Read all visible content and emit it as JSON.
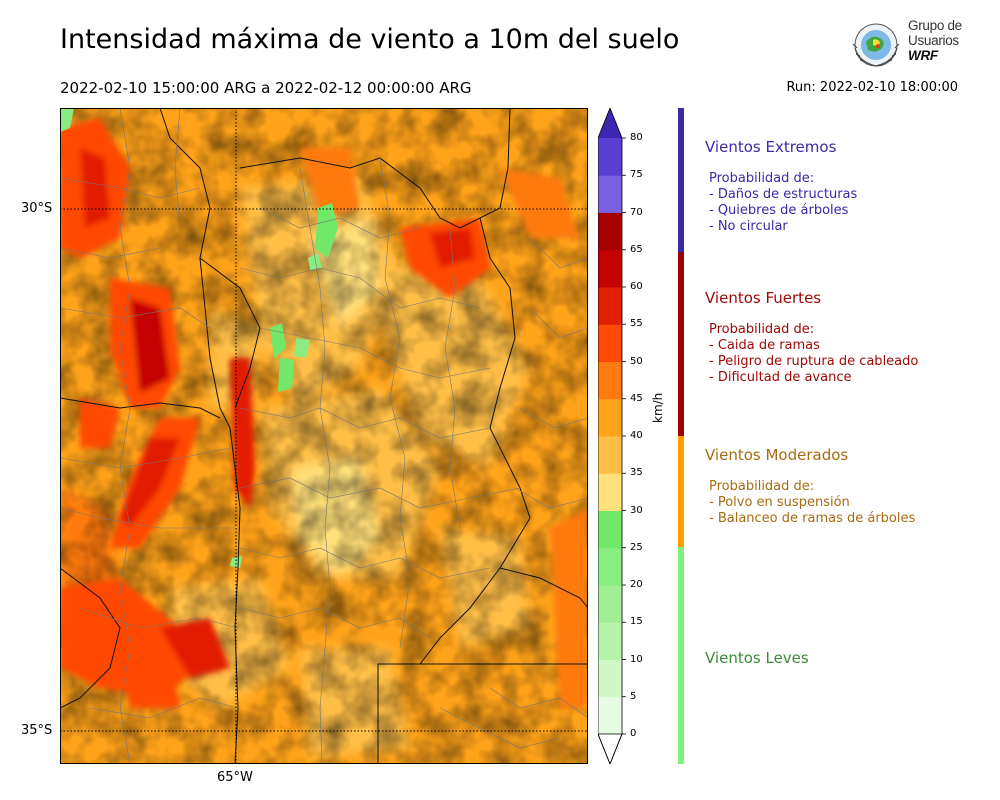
{
  "header": {
    "title": "Intensidad máxima de viento a 10m del suelo",
    "period": "2022-02-10 15:00:00 ARG  a  2022-02-12 00:00:00 ARG",
    "run": "Run: 2022-02-10 18:00:00"
  },
  "logo": {
    "line1": "Grupo de",
    "line2": "Usuarios",
    "line3": "WRF"
  },
  "map": {
    "lat_labels": [
      "30°S",
      "35°S"
    ],
    "lon_labels": [
      "65°W"
    ]
  },
  "colorbar": {
    "unit": "km/h",
    "ticks": [
      "0",
      "5",
      "10",
      "15",
      "20",
      "25",
      "30",
      "35",
      "40",
      "45",
      "50",
      "55",
      "60",
      "65",
      "70",
      "75",
      "80"
    ],
    "colors": [
      "#e8fce4",
      "#d0f8c8",
      "#b8f4ac",
      "#a0ef94",
      "#88ec80",
      "#72e86a",
      "#ffe07a",
      "#ffbf47",
      "#ffa31a",
      "#ff7a10",
      "#ff4a06",
      "#e21f00",
      "#c40000",
      "#a60000",
      "#7860e0",
      "#5a40d0",
      "#4026b8"
    ],
    "extend_top_color": "#3f26b0"
  },
  "categories": [
    {
      "title": "Vientos Extremos",
      "color": "#3c28a8",
      "bar_color": "#3a2aa8",
      "desc_header": "Probabilidad de:",
      "items": [
        "- Daños de estructuras",
        "- Quiebres de árboles",
        "- No circular"
      ]
    },
    {
      "title": "Vientos Fuertes",
      "color": "#a00808",
      "bar_color": "#a00000",
      "desc_header": "Probabilidad de:",
      "items": [
        "- Caida de ramas",
        "- Peligro de ruptura de cableado",
        "- Dificultad de avance"
      ]
    },
    {
      "title": "Vientos Moderados",
      "color": "#a86b10",
      "bar_color": "#ffa000",
      "desc_header": "Probabilidad de:",
      "items": [
        "- Polvo en suspensión",
        "- Balanceo de ramas de árboles"
      ]
    },
    {
      "title": "Vientos Leves",
      "color": "#3a8a3a",
      "bar_color": "#7af57a",
      "desc_header": "",
      "items": []
    }
  ]
}
